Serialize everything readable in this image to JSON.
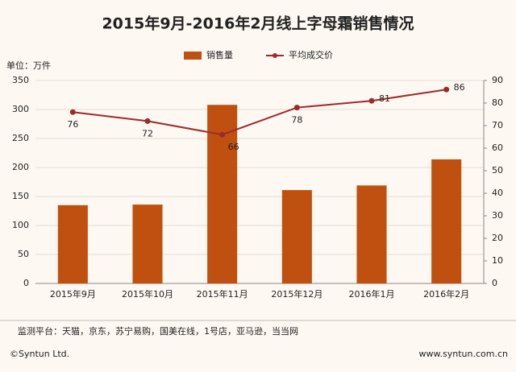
{
  "chart_data": {
    "type": "bar-line",
    "title": "2015年9月-2016年2月线上字母霜销售情况",
    "y_label": "单位：万件",
    "categories": [
      "2015年9月",
      "2015年10月",
      "2015年11月",
      "2015年12月",
      "2016年1月",
      "2016年2月"
    ],
    "series": [
      {
        "name": "销售量",
        "color": "#c0500f",
        "type": "bar",
        "values": [
          135,
          136,
          308,
          161,
          169,
          214
        ]
      },
      {
        "name": "平均成交价",
        "color": "#9b2b2b",
        "type": "line",
        "axis": "y2",
        "values": [
          76,
          72,
          66,
          78,
          81,
          86
        ]
      }
    ],
    "ylim": [
      0,
      350
    ],
    "yticks": [
      0,
      50,
      100,
      150,
      200,
      250,
      300,
      350
    ],
    "y2lim": [
      0,
      90
    ],
    "y2ticks": [
      0,
      10,
      20,
      30,
      40,
      50,
      60,
      70,
      80,
      90
    ],
    "grid": true,
    "source": "监测平台：天猫，京东，苏宁易购，国美在线，1号店，亚马逊，当当网",
    "copyright": "©Syntun Ltd.",
    "website": "www.syntun.com.cn"
  }
}
